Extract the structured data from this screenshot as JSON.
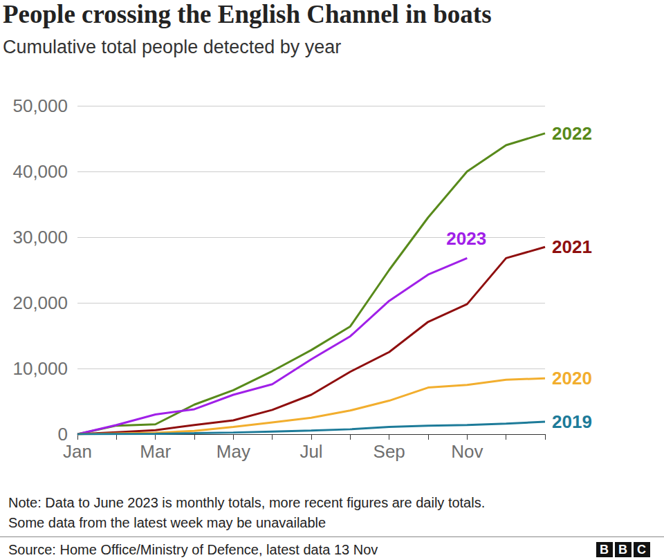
{
  "chart_data": {
    "type": "line",
    "title": "People crossing the English Channel in boats",
    "subtitle": "Cumulative total people detected by year",
    "note": [
      "Note: Data to June 2023 is monthly totals, more recent figures are daily totals.",
      "Some data from the latest week may be unavailable"
    ],
    "source": "Source: Home Office/Ministry of Defence, latest data 13 Nov",
    "logo": "BBC",
    "categories": [
      "Jan",
      null,
      "Mar",
      null,
      "May",
      null,
      "Jul",
      null,
      "Sep",
      null,
      "Nov",
      null,
      null
    ],
    "series": [
      {
        "name": "2022",
        "color": "#588a1b",
        "values": [
          0,
          1300,
          1500,
          4500,
          6700,
          9600,
          12800,
          16400,
          25000,
          33000,
          40000,
          44000,
          45800
        ]
      },
      {
        "name": "2023",
        "color": "#a020e8",
        "values": [
          0,
          1400,
          3000,
          3800,
          6000,
          7600,
          11400,
          14900,
          20300,
          24300,
          26800,
          null,
          null
        ]
      },
      {
        "name": "2021",
        "color": "#8f0f0f",
        "values": [
          0,
          300,
          600,
          1400,
          2100,
          3700,
          6000,
          9500,
          12500,
          17100,
          19800,
          26800,
          28500
        ]
      },
      {
        "name": "2020",
        "color": "#f2ae2e",
        "values": [
          0,
          100,
          200,
          500,
          1100,
          1800,
          2500,
          3600,
          5100,
          7100,
          7500,
          8300,
          8500
        ]
      },
      {
        "name": "2019",
        "color": "#1d7b99",
        "values": [
          0,
          30,
          60,
          150,
          250,
          400,
          550,
          750,
          1100,
          1300,
          1400,
          1600,
          1900
        ]
      }
    ],
    "ylim": [
      0,
      50000
    ],
    "yticks": [
      0,
      {
        "value": 10000,
        "label": "10,000"
      },
      {
        "value": 20000,
        "label": "20,000"
      },
      {
        "value": 30000,
        "label": "30,000"
      },
      {
        "value": 40000,
        "label": "40,000"
      },
      {
        "value": 50000,
        "label": "50,000"
      }
    ],
    "grid": true
  }
}
